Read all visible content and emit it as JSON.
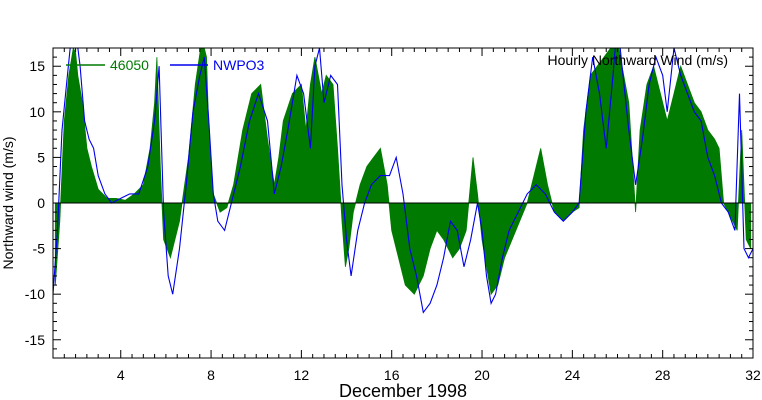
{
  "chart_data": {
    "type": "area",
    "annotation": "Hourly Northward Wind (m/s)",
    "xlabel": "December 1998",
    "ylabel": "Northward wind (m/s)",
    "xlim": [
      1,
      32
    ],
    "ylim": [
      -17,
      17
    ],
    "xticks": [
      4,
      8,
      12,
      16,
      20,
      24,
      28,
      32
    ],
    "yticks": [
      -15,
      -10,
      -5,
      0,
      5,
      10,
      15
    ],
    "x_minor_step": 0.5,
    "y_minor_step": 1,
    "zero_line": true,
    "grid": false,
    "legend_position": "top-left",
    "colors": {
      "46050": "#007a00",
      "NWPO3": "#0000ee",
      "axis": "#000000"
    },
    "series": [
      {
        "name": "46050",
        "style": "filled-area",
        "color": "#007a00",
        "x": [
          1.1,
          1.3,
          1.5,
          1.7,
          1.9,
          2.0,
          2.1,
          2.3,
          2.5,
          2.7,
          3.0,
          3.4,
          3.8,
          4.2,
          4.6,
          5.0,
          5.3,
          5.5,
          5.6,
          5.75,
          5.9,
          6.2,
          6.6,
          7.0,
          7.3,
          7.6,
          7.8,
          7.9,
          8.1,
          8.4,
          8.7,
          9.0,
          9.4,
          9.8,
          10.2,
          10.5,
          10.8,
          11.0,
          11.2,
          11.6,
          12.0,
          12.2,
          12.4,
          12.6,
          12.9,
          13.1,
          13.4,
          13.6,
          13.8,
          13.95,
          14.1,
          14.3,
          14.6,
          14.9,
          15.2,
          15.5,
          15.8,
          16.0,
          16.3,
          16.6,
          17.0,
          17.4,
          17.7,
          18.0,
          18.3,
          18.7,
          19.0,
          19.3,
          19.6,
          19.8,
          20.0,
          20.2,
          20.4,
          20.7,
          21.0,
          21.5,
          22.0,
          22.3,
          22.6,
          22.9,
          23.2,
          23.6,
          24.0,
          24.3,
          24.5,
          24.8,
          25.1,
          25.4,
          25.7,
          26.0,
          26.2,
          26.5,
          26.8,
          27.0,
          27.3,
          27.6,
          27.9,
          28.2,
          28.5,
          28.8,
          29.1,
          29.4,
          29.7,
          30.0,
          30.3,
          30.5,
          30.7,
          30.9,
          31.1,
          31.3,
          31.5,
          31.7,
          31.9
        ],
        "y": [
          -9,
          -2,
          9,
          14,
          17,
          16.5,
          14,
          11,
          6,
          4,
          1.5,
          0.5,
          0.5,
          0.3,
          1,
          2,
          6,
          11,
          16,
          4,
          -4,
          -6,
          -2,
          5,
          13,
          18,
          16,
          8,
          1,
          -1,
          -0.5,
          2,
          8,
          12,
          13,
          7,
          2,
          5,
          9,
          12,
          13,
          8,
          13,
          16,
          12,
          14,
          13,
          6,
          -2,
          -7,
          -5,
          -1,
          2,
          4,
          5,
          6,
          2,
          -3,
          -6,
          -9,
          -10,
          -8,
          -5,
          -3,
          -4,
          -6,
          -5,
          -3,
          5,
          1,
          -4,
          -7,
          -10,
          -9,
          -6,
          -3,
          0,
          3,
          6,
          2,
          -1,
          -2,
          -1,
          -0.5,
          8,
          14,
          15,
          16,
          17,
          18,
          15,
          11,
          -1,
          8,
          13,
          15,
          12,
          9,
          12,
          15,
          13,
          11,
          10,
          8,
          7,
          6,
          0,
          -1,
          -2,
          -3,
          8,
          -4,
          -5
        ],
        "values": [
          -9,
          -2,
          9,
          14,
          17,
          16.5,
          14,
          11,
          6,
          4,
          1.5,
          0.5,
          0.5,
          0.3,
          1,
          2,
          6,
          11,
          16,
          4,
          -4,
          -6,
          -2,
          5,
          13,
          18,
          16,
          8,
          1,
          -1,
          -0.5,
          2,
          8,
          12,
          13,
          7,
          2,
          5,
          9,
          12,
          13,
          8,
          13,
          16,
          12,
          14,
          13,
          6,
          -2,
          -7,
          -5,
          -1,
          2,
          4,
          5,
          6,
          2,
          -3,
          -6,
          -9,
          -10,
          -8,
          -5,
          -3,
          -4,
          -6,
          -5,
          -3,
          5,
          1,
          -4,
          -7,
          -10,
          -9,
          -6,
          -3,
          0,
          3,
          6,
          2,
          -1,
          -2,
          -1,
          -0.5,
          8,
          14,
          15,
          16,
          17,
          18,
          15,
          11,
          -1,
          8,
          13,
          15,
          12,
          9,
          12,
          15,
          13,
          11,
          10,
          8,
          7,
          6,
          0,
          -1,
          -2,
          -3,
          8,
          -4,
          -5
        ]
      },
      {
        "name": "NWPO3",
        "style": "line",
        "color": "#0000ee",
        "x": [
          1.0,
          1.2,
          1.4,
          1.6,
          1.8,
          2.0,
          2.2,
          2.4,
          2.6,
          2.8,
          3.0,
          3.3,
          3.6,
          4.0,
          4.4,
          4.8,
          5.2,
          5.5,
          5.7,
          5.9,
          6.1,
          6.3,
          6.6,
          6.9,
          7.2,
          7.5,
          7.7,
          7.9,
          8.1,
          8.3,
          8.6,
          8.9,
          9.3,
          9.7,
          10.1,
          10.5,
          10.8,
          11.1,
          11.4,
          11.8,
          12.1,
          12.4,
          12.6,
          12.8,
          13.0,
          13.3,
          13.6,
          13.8,
          14.0,
          14.2,
          14.5,
          14.8,
          15.1,
          15.5,
          15.9,
          16.2,
          16.5,
          16.8,
          17.1,
          17.4,
          17.7,
          18.0,
          18.3,
          18.6,
          18.9,
          19.2,
          19.5,
          19.8,
          20.0,
          20.2,
          20.4,
          20.6,
          20.9,
          21.2,
          21.6,
          22.0,
          22.4,
          22.8,
          23.2,
          23.6,
          24.0,
          24.3,
          24.6,
          24.9,
          25.2,
          25.5,
          25.8,
          26.0,
          26.2,
          26.5,
          26.8,
          27.1,
          27.4,
          27.7,
          28.0,
          28.2,
          28.5,
          28.8,
          29.1,
          29.4,
          29.7,
          30.0,
          30.3,
          30.6,
          30.9,
          31.2,
          31.4,
          31.6,
          31.8,
          32.0
        ],
        "y": [
          -10,
          -3,
          8,
          13,
          18,
          19,
          15,
          9,
          7,
          6,
          3,
          1,
          0,
          0.5,
          1,
          1,
          4,
          9,
          15,
          -1,
          -8,
          -10,
          -5,
          2,
          10,
          14,
          16,
          9,
          1,
          -2,
          -3,
          0,
          4,
          9,
          12,
          9,
          1,
          4,
          8,
          14,
          12,
          6,
          15,
          17,
          11,
          14,
          13,
          2,
          -4,
          -8,
          -3,
          0,
          2,
          3,
          3,
          5,
          1,
          -5,
          -8,
          -12,
          -11,
          -9,
          -6,
          -2,
          -3,
          -7,
          -4,
          0,
          -3,
          -8,
          -11,
          -10,
          -6,
          -3,
          -1,
          1,
          2,
          1,
          -1,
          -2,
          -1,
          0,
          10,
          16,
          12,
          6,
          14,
          20,
          15,
          8,
          2,
          7,
          13,
          16,
          14,
          10,
          17,
          14,
          12,
          10,
          9,
          5,
          3,
          0,
          -1,
          -3,
          12,
          -5,
          -6,
          -5
        ]
      }
    ]
  }
}
